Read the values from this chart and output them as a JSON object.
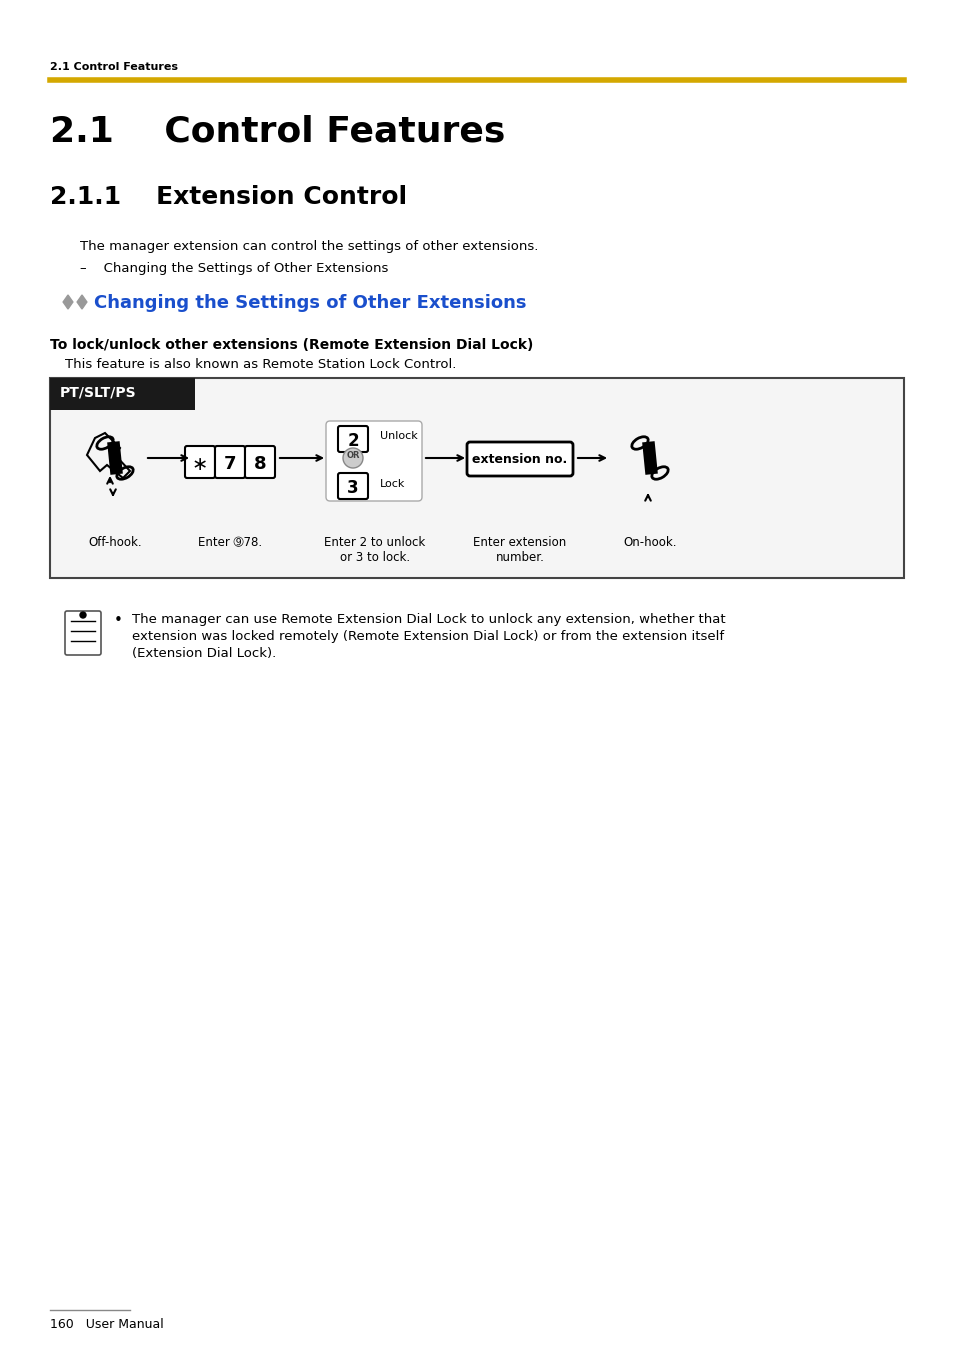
{
  "page_bg": "#ffffff",
  "header_small": "2.1 Control Features",
  "gold_line_color": "#D4A800",
  "section_title": "2.1    Control Features",
  "subsection_title": "2.1.1    Extension Control",
  "body_text1": "The manager extension can control the settings of other extensions.",
  "bullet_dash": "–    Changing the Settings of Other Extensions",
  "diamond_color": "#808080",
  "blue_heading": "Changing the Settings of Other Extensions",
  "blue_color": "#1a4fcc",
  "bold_heading": "To lock/unlock other extensions (Remote Extension Dial Lock)",
  "feature_note": "This feature is also known as Remote Station Lock Control.",
  "box_header_bg": "#1a1a1a",
  "box_header_text": "PT/SLT/PS",
  "box_border": "#333333",
  "label_offhook": "Off-hook.",
  "label_enter78": "Enter ➈78.",
  "label_enter2or3": "Enter 2 to unlock\nor 3 to lock.",
  "label_extno": "Enter extension\nnumber.",
  "label_onhook": "On-hook.",
  "note_text": "The manager can use Remote Extension Dial Lock to unlock any extension, whether that\nextension was locked remotely (Remote Extension Dial Lock) or from the extension itself\n(Extension Dial Lock).",
  "footer_text": "160   User Manual"
}
